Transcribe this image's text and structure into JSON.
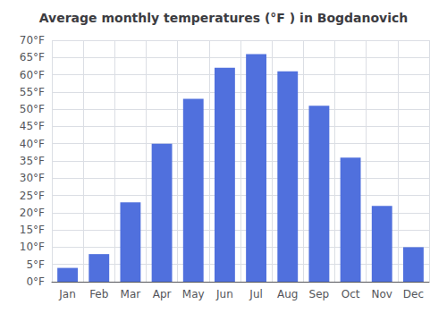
{
  "chart_data": {
    "type": "bar",
    "title": "Average monthly temperatures (°F ) in Bogdanovich",
    "categories": [
      "Jan",
      "Feb",
      "Mar",
      "Apr",
      "May",
      "Jun",
      "Jul",
      "Aug",
      "Sep",
      "Oct",
      "Nov",
      "Dec"
    ],
    "values": [
      4,
      8,
      23,
      40,
      53,
      62,
      66,
      61,
      51,
      36,
      22,
      10
    ],
    "ylim": [
      0,
      70
    ],
    "yticks": [
      {
        "value": 0,
        "label": "0°F"
      },
      {
        "value": 5,
        "label": "5°F"
      },
      {
        "value": 10,
        "label": "10°F"
      },
      {
        "value": 15,
        "label": "15°F"
      },
      {
        "value": 20,
        "label": "20°F"
      },
      {
        "value": 25,
        "label": "25°F"
      },
      {
        "value": 30,
        "label": "30°F"
      },
      {
        "value": 35,
        "label": "35°F"
      },
      {
        "value": 40,
        "label": "40°F"
      },
      {
        "value": 45,
        "label": "45°F"
      },
      {
        "value": 50,
        "label": "50°F"
      },
      {
        "value": 55,
        "label": "55°F"
      },
      {
        "value": 60,
        "label": "60°F"
      },
      {
        "value": 65,
        "label": "65°F"
      },
      {
        "value": 70,
        "label": "70°F"
      }
    ],
    "grid": true
  }
}
